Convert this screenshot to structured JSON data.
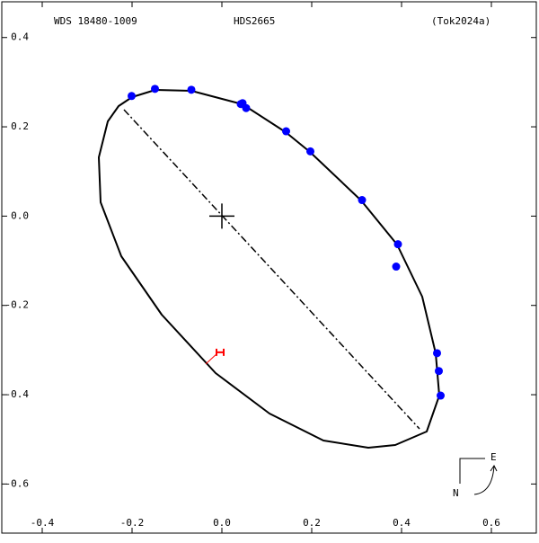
{
  "chart_data": {
    "type": "scatter",
    "subtitle": "WDS 18480-1009",
    "title": "HDS2665",
    "annotation": "(Tok2024a)",
    "compass": {
      "east": "E",
      "north": "N"
    },
    "xlim": [
      -0.49,
      0.7
    ],
    "ylim": [
      -0.71,
      0.48
    ],
    "xticks": [
      -0.4,
      -0.2,
      {
        "value": 0,
        "label": "0.0"
      },
      0.2,
      0.4,
      0.6
    ],
    "yticks": [
      0.4,
      0.2,
      {
        "value": 0,
        "label": "0.0"
      },
      -0.2,
      -0.4,
      -0.6
    ],
    "series": [
      {
        "color": "#0000ff",
        "x": [
          -0.201,
          -0.149,
          -0.068,
          0.042,
          0.046,
          0.054,
          0.143,
          0.197,
          0.312,
          0.392,
          0.388,
          0.479,
          0.483,
          0.487
        ],
        "y": [
          0.269,
          0.285,
          0.283,
          0.251,
          0.253,
          0.242,
          0.19,
          0.145,
          0.036,
          -0.063,
          -0.113,
          -0.307,
          -0.347,
          -0.402
        ]
      }
    ],
    "marker": {
      "color": "#ff0000",
      "x": -0.004,
      "y": -0.305
    }
  }
}
